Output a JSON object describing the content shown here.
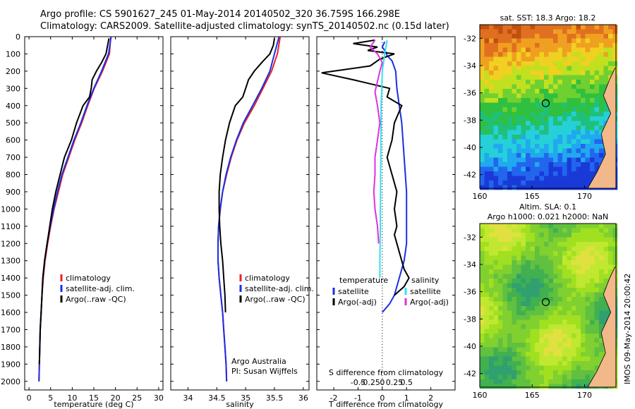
{
  "header": {
    "line1": "Argo profile: CS 5901627_245 01-May-2014 20140502_320 36.759S 166.298E",
    "line2": "Climatology: CARS2009. Satellite-adjusted climatology: synTS_20140502.nc (0.15d later)"
  },
  "side_label": "IMOS 09-May-2014 20:00:42",
  "colors": {
    "climatology": "#e8202a",
    "satellite": "#1a2ee6",
    "argo": "#000000",
    "sal_satellite": "#33e0f0",
    "sal_argo": "#e030e0"
  },
  "chart_data": [
    {
      "type": "line",
      "xlabel": "temperature (deg C)",
      "xlim": [
        -1,
        31
      ],
      "xticks": [
        0,
        5,
        10,
        15,
        20,
        25,
        30
      ],
      "ylim": [
        0,
        2050
      ],
      "yticks": [
        0,
        100,
        200,
        300,
        400,
        500,
        600,
        700,
        800,
        900,
        1000,
        1100,
        1200,
        1300,
        1400,
        1500,
        1600,
        1700,
        1800,
        1900,
        2000
      ],
      "legend": [
        "climatology",
        "satellite-adj. clim.",
        "Argo(..raw -QC)"
      ],
      "series": [
        {
          "name": "climatology",
          "color": "#e8202a",
          "x": [
            18.9,
            18.6,
            17.0,
            15.1,
            13.6,
            12.2,
            10.6,
            9.2,
            7.8,
            6.8,
            5.8,
            5.0,
            4.3,
            3.7,
            3.3,
            3.0,
            2.8,
            2.6,
            2.5,
            2.4,
            2.3
          ],
          "y": [
            0,
            100,
            200,
            300,
            400,
            500,
            600,
            700,
            800,
            900,
            1000,
            1100,
            1200,
            1300,
            1400,
            1500,
            1600,
            1700,
            1800,
            1900,
            2000
          ]
        },
        {
          "name": "satellite-adj. clim.",
          "color": "#1a2ee6",
          "x": [
            19.0,
            18.4,
            16.8,
            15.0,
            13.4,
            12.0,
            10.4,
            9.0,
            7.6,
            6.6,
            5.7,
            4.9,
            4.2,
            3.6,
            3.2,
            3.0,
            2.8,
            2.6,
            2.5,
            2.4,
            2.3
          ],
          "y": [
            0,
            100,
            200,
            300,
            400,
            500,
            600,
            700,
            800,
            900,
            1000,
            1100,
            1200,
            1300,
            1400,
            1500,
            1600,
            1700,
            1800,
            1900,
            2000
          ]
        },
        {
          "name": "Argo(..raw -QC)",
          "color": "#000000",
          "x": [
            18.5,
            18.2,
            17.8,
            16.8,
            15.6,
            14.6,
            14.4,
            14.0,
            12.5,
            11.0,
            9.8,
            8.2,
            7.2,
            6.2,
            5.4,
            4.8,
            4.2,
            3.6,
            3.2,
            3.0,
            2.8,
            2.6,
            2.5,
            2.4
          ],
          "y": [
            10,
            50,
            100,
            150,
            200,
            250,
            300,
            350,
            400,
            500,
            600,
            700,
            800,
            900,
            1000,
            1100,
            1200,
            1300,
            1400,
            1500,
            1600,
            1700,
            1800,
            1900
          ]
        }
      ]
    },
    {
      "type": "line",
      "xlabel": "salinity",
      "xlim": [
        33.7,
        36.1
      ],
      "xticks": [
        34,
        34.5,
        35,
        35.5,
        36
      ],
      "ylim": [
        0,
        2050
      ],
      "legend": [
        "climatology",
        "satellite-adj. clim.",
        "Argo(..raw -QC)"
      ],
      "annotation": [
        "Argo Australia",
        "PI: Susan Wijffels"
      ],
      "series": [
        {
          "name": "climatology",
          "color": "#e8202a",
          "x": [
            35.6,
            35.55,
            35.45,
            35.3,
            35.15,
            34.98,
            34.85,
            34.75,
            34.67,
            34.6,
            34.56,
            34.53,
            34.52,
            34.52,
            34.54,
            34.57,
            34.6,
            34.62,
            34.64,
            34.66,
            34.67
          ],
          "y": [
            0,
            100,
            200,
            300,
            400,
            500,
            600,
            700,
            800,
            900,
            1000,
            1100,
            1200,
            1300,
            1400,
            1500,
            1600,
            1700,
            1800,
            1900,
            2000
          ]
        },
        {
          "name": "satellite-adj. clim.",
          "color": "#1a2ee6",
          "x": [
            35.58,
            35.5,
            35.42,
            35.28,
            35.12,
            34.96,
            34.84,
            34.74,
            34.66,
            34.6,
            34.56,
            34.53,
            34.52,
            34.52,
            34.54,
            34.57,
            34.6,
            34.62,
            34.64,
            34.66,
            34.67
          ],
          "y": [
            0,
            100,
            200,
            300,
            400,
            500,
            600,
            700,
            800,
            900,
            1000,
            1100,
            1200,
            1300,
            1400,
            1500,
            1600,
            1700,
            1800,
            1900,
            2000
          ]
        },
        {
          "name": "Argo(..raw -QC)",
          "color": "#000000",
          "x": [
            35.5,
            35.48,
            35.42,
            35.28,
            35.15,
            35.05,
            35.0,
            34.95,
            34.82,
            34.72,
            34.65,
            34.6,
            34.56,
            34.54,
            34.54,
            34.55,
            34.57,
            34.6,
            34.62,
            34.64,
            34.65
          ],
          "y": [
            10,
            50,
            100,
            150,
            200,
            250,
            300,
            350,
            400,
            500,
            600,
            700,
            800,
            900,
            1000,
            1100,
            1200,
            1300,
            1400,
            1500,
            1600
          ]
        }
      ]
    },
    {
      "type": "line",
      "xlabel": "T difference from climatology",
      "xlabel2": "S difference from climatology",
      "xlim": [
        -2.7,
        3.0
      ],
      "xticks": [
        -2,
        -1,
        0,
        1,
        2
      ],
      "xticks_s": [
        -0.5,
        -0.25,
        0,
        0.25,
        0.5
      ],
      "xticks_s_labels": [
        "-0.5",
        "-0.25",
        "0",
        "0.25",
        "0.5"
      ],
      "ylim": [
        0,
        2050
      ],
      "legend_left_title": "temperature",
      "legend_right_title": "salinity",
      "legend_left": [
        "satellite",
        "Argo(-adj)"
      ],
      "legend_right": [
        "satellite",
        "Argo(-adj)"
      ],
      "series": [
        {
          "name": "satellite",
          "color": "#1a2ee6",
          "x": [
            0.1,
            0.0,
            0.15,
            0.2,
            0.4,
            0.55,
            0.6,
            0.7,
            0.8,
            0.85,
            0.9,
            0.95,
            1.0,
            1.0,
            1.0,
            1.0,
            0.9,
            0.7,
            0.5,
            0.3,
            0.0
          ],
          "y": [
            30,
            60,
            90,
            110,
            140,
            200,
            300,
            400,
            500,
            600,
            700,
            800,
            900,
            1000,
            1100,
            1200,
            1300,
            1400,
            1500,
            1550,
            1600
          ]
        },
        {
          "name": "Argo(-adj)",
          "color": "#000000",
          "x": [
            -0.3,
            -1.2,
            -0.2,
            -0.6,
            0.5,
            -0.1,
            -0.5,
            -2.5,
            -1.2,
            0.3,
            0.2,
            0.8,
            0.5,
            0.4,
            0.2,
            0.4,
            0.6,
            0.5,
            0.6,
            0.5,
            0.6,
            0.7,
            0.8,
            0.9,
            1.1,
            0.9,
            0.5
          ],
          "y": [
            20,
            40,
            60,
            80,
            100,
            130,
            170,
            210,
            250,
            300,
            350,
            400,
            500,
            600,
            700,
            800,
            900,
            1000,
            1100,
            1150,
            1200,
            1250,
            1300,
            1350,
            1400,
            1450,
            1500
          ]
        },
        {
          "name": "satellite (salinity)",
          "color": "#33e0f0",
          "x": [
            0.2,
            0.15,
            0.1,
            0.05,
            0.0,
            -0.02,
            -0.05,
            -0.05,
            -0.06,
            -0.06,
            -0.07,
            -0.07,
            -0.08,
            -0.08,
            -0.09,
            -0.1,
            -0.1
          ],
          "y": [
            20,
            60,
            100,
            150,
            200,
            300,
            400,
            500,
            600,
            700,
            800,
            900,
            1000,
            1100,
            1200,
            1300,
            1400
          ]
        },
        {
          "name": "Argo(-adj) (salinity)",
          "color": "#e030e0",
          "x": [
            -0.3,
            -0.5,
            -0.2,
            0.0,
            -0.1,
            -0.2,
            -0.3,
            -0.2,
            -0.1,
            -0.2,
            -0.3,
            -0.3,
            -0.35,
            -0.3,
            -0.2,
            -0.15
          ],
          "y": [
            20,
            60,
            100,
            150,
            200,
            260,
            320,
            400,
            500,
            600,
            700,
            800,
            900,
            1000,
            1100,
            1200
          ]
        }
      ]
    }
  ],
  "maps": [
    {
      "title_lines": [
        "sat. SST: 18.3 Argo: 18.2"
      ],
      "xticks": [
        160,
        165,
        170
      ],
      "yticks": [
        -32,
        -34,
        -36,
        -38,
        -40,
        -42
      ],
      "lon_range": [
        160,
        173
      ],
      "lat_range": [
        -31,
        -43
      ],
      "marker": {
        "lon": 166.298,
        "lat": -36.759
      }
    },
    {
      "title_lines": [
        "Altim. SLA: 0.1",
        "Argo h1000: 0.021 h2000: NaN"
      ],
      "xticks": [
        160,
        165,
        170
      ],
      "yticks": [
        -32,
        -34,
        -36,
        -38,
        -40,
        -42
      ],
      "lon_range": [
        160,
        173
      ],
      "lat_range": [
        -31,
        -43
      ],
      "marker": {
        "lon": 166.298,
        "lat": -36.759
      }
    }
  ]
}
